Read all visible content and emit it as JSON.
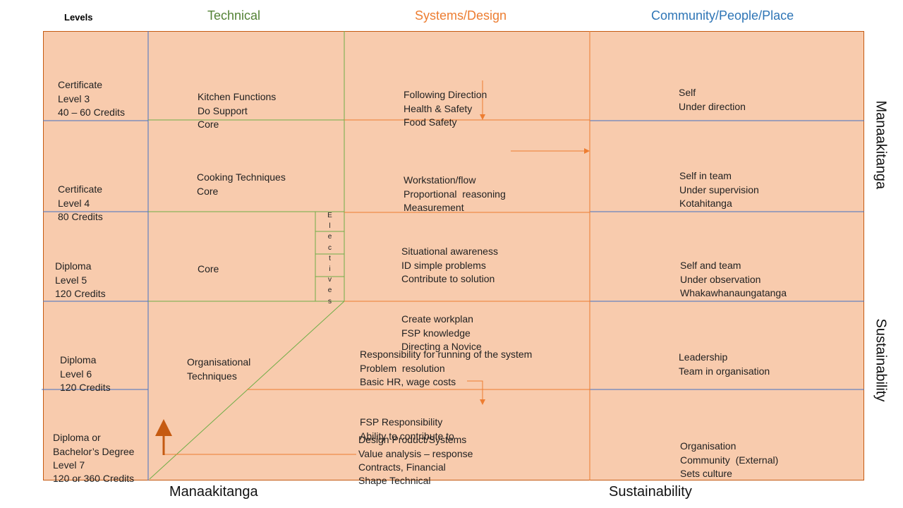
{
  "headers": {
    "levels": "Levels",
    "technical": "Technical",
    "systems": "Systems/Design",
    "community": "Community/People/Place"
  },
  "colors": {
    "technical_header": "#548235",
    "systems_header": "#ed7d31",
    "community_header": "#2e75b6",
    "panel_fill": "#f8cbad",
    "orange_line": "#ed7d31",
    "blue_line": "#4472c4",
    "green_line": "#70ad47",
    "arrow_dark": "#c55a11"
  },
  "levels": [
    {
      "lines": [
        "Certificate",
        "Level 3",
        "40 – 60 Credits"
      ]
    },
    {
      "lines": [
        "Certificate",
        "Level 4",
        "80 Credits"
      ]
    },
    {
      "lines": [
        "Diploma",
        "Level 5",
        "120 Credits"
      ]
    },
    {
      "lines": [
        "Diploma",
        "Level 6",
        "120 Credits"
      ]
    },
    {
      "lines": [
        "Diploma or",
        "Bachelor’s Degree",
        "Level 7",
        "120 or 360 Credits"
      ]
    }
  ],
  "technical": [
    {
      "lines": [
        "Kitchen Functions",
        "Do Support",
        "Core"
      ]
    },
    {
      "lines": [
        "Cooking Techniques",
        "Core"
      ]
    },
    {
      "lines": [
        "Core"
      ]
    },
    {
      "lines": [
        "Organisational",
        "Techniques"
      ]
    }
  ],
  "electives": [
    "E",
    "l",
    "e",
    "c",
    "t",
    "i",
    "v",
    "e",
    "s"
  ],
  "systems": [
    {
      "lines": [
        "Following Direction",
        "Health & Safety",
        "Food Safety"
      ]
    },
    {
      "lines": [
        "Workstation/flow",
        "Proportional  reasoning",
        "Measurement"
      ]
    },
    {
      "lines": [
        "Situational awareness",
        "ID simple problems",
        "Contribute to solution",
        "Create workplan",
        "FSP knowledge",
        "Directing a Novice"
      ]
    },
    {
      "lines": [
        "Responsibility for running of the system",
        "Problem  resolution",
        "Basic HR, wage costs",
        "FSP Responsibility",
        "Ability to contribute to"
      ]
    },
    {
      "lines": [
        "Design Product/Systems",
        "Value analysis – response",
        "Contracts, Financial",
        "Shape Technical"
      ]
    }
  ],
  "community": [
    {
      "lines": [
        "Self",
        "Under direction"
      ]
    },
    {
      "lines": [
        "Self in team",
        "Under supervision",
        "Kotahitanga"
      ]
    },
    {
      "lines": [
        "Self and team",
        "Under observation",
        "Whakawhanaungatanga"
      ]
    },
    {
      "lines": [
        "Leadership",
        "Team in organisation"
      ]
    },
    {
      "lines": [
        "Organisation",
        "Community  (External)",
        "Sets culture"
      ]
    }
  ],
  "side_labels": {
    "upper": "Manaakitanga",
    "lower": "Sustainability"
  },
  "footer": {
    "left": "Manaakitanga",
    "right": "Sustainability"
  }
}
